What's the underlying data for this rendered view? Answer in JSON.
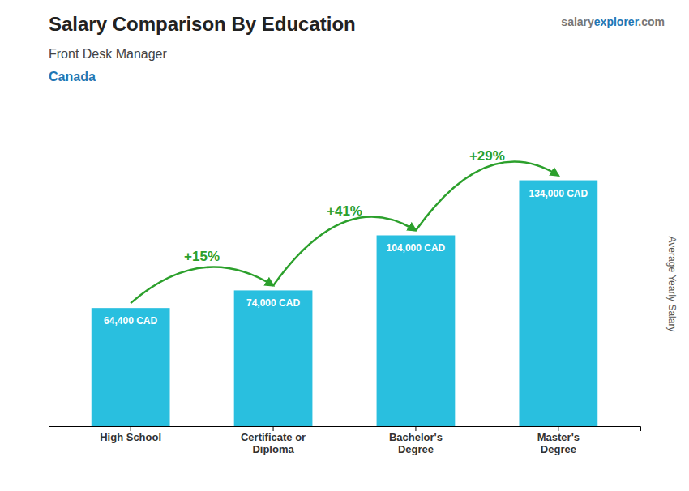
{
  "chart_data": {
    "type": "bar",
    "title": "Salary Comparison By Education",
    "subtitle": "Front Desk Manager",
    "ylabel": "Average Yearly Salary",
    "annotations": [
      "Canada",
      "salary",
      "explorer",
      ".com"
    ],
    "categories": [
      "High School",
      "Certificate or\nDiploma",
      "Bachelor's\nDegree",
      "Master's\nDegree"
    ],
    "values": [
      64400,
      74000,
      104000,
      134000
    ],
    "value_labels": [
      "64,400 CAD",
      "74,000 CAD",
      "104,000 CAD",
      "134,000 CAD"
    ],
    "data_labels": true,
    "change_labels": [
      "+15%",
      "+41%",
      "+29%"
    ],
    "color": "#29bfdf",
    "ylim": [
      0,
      155000
    ],
    "grid": false,
    "tick_labels": "x"
  }
}
